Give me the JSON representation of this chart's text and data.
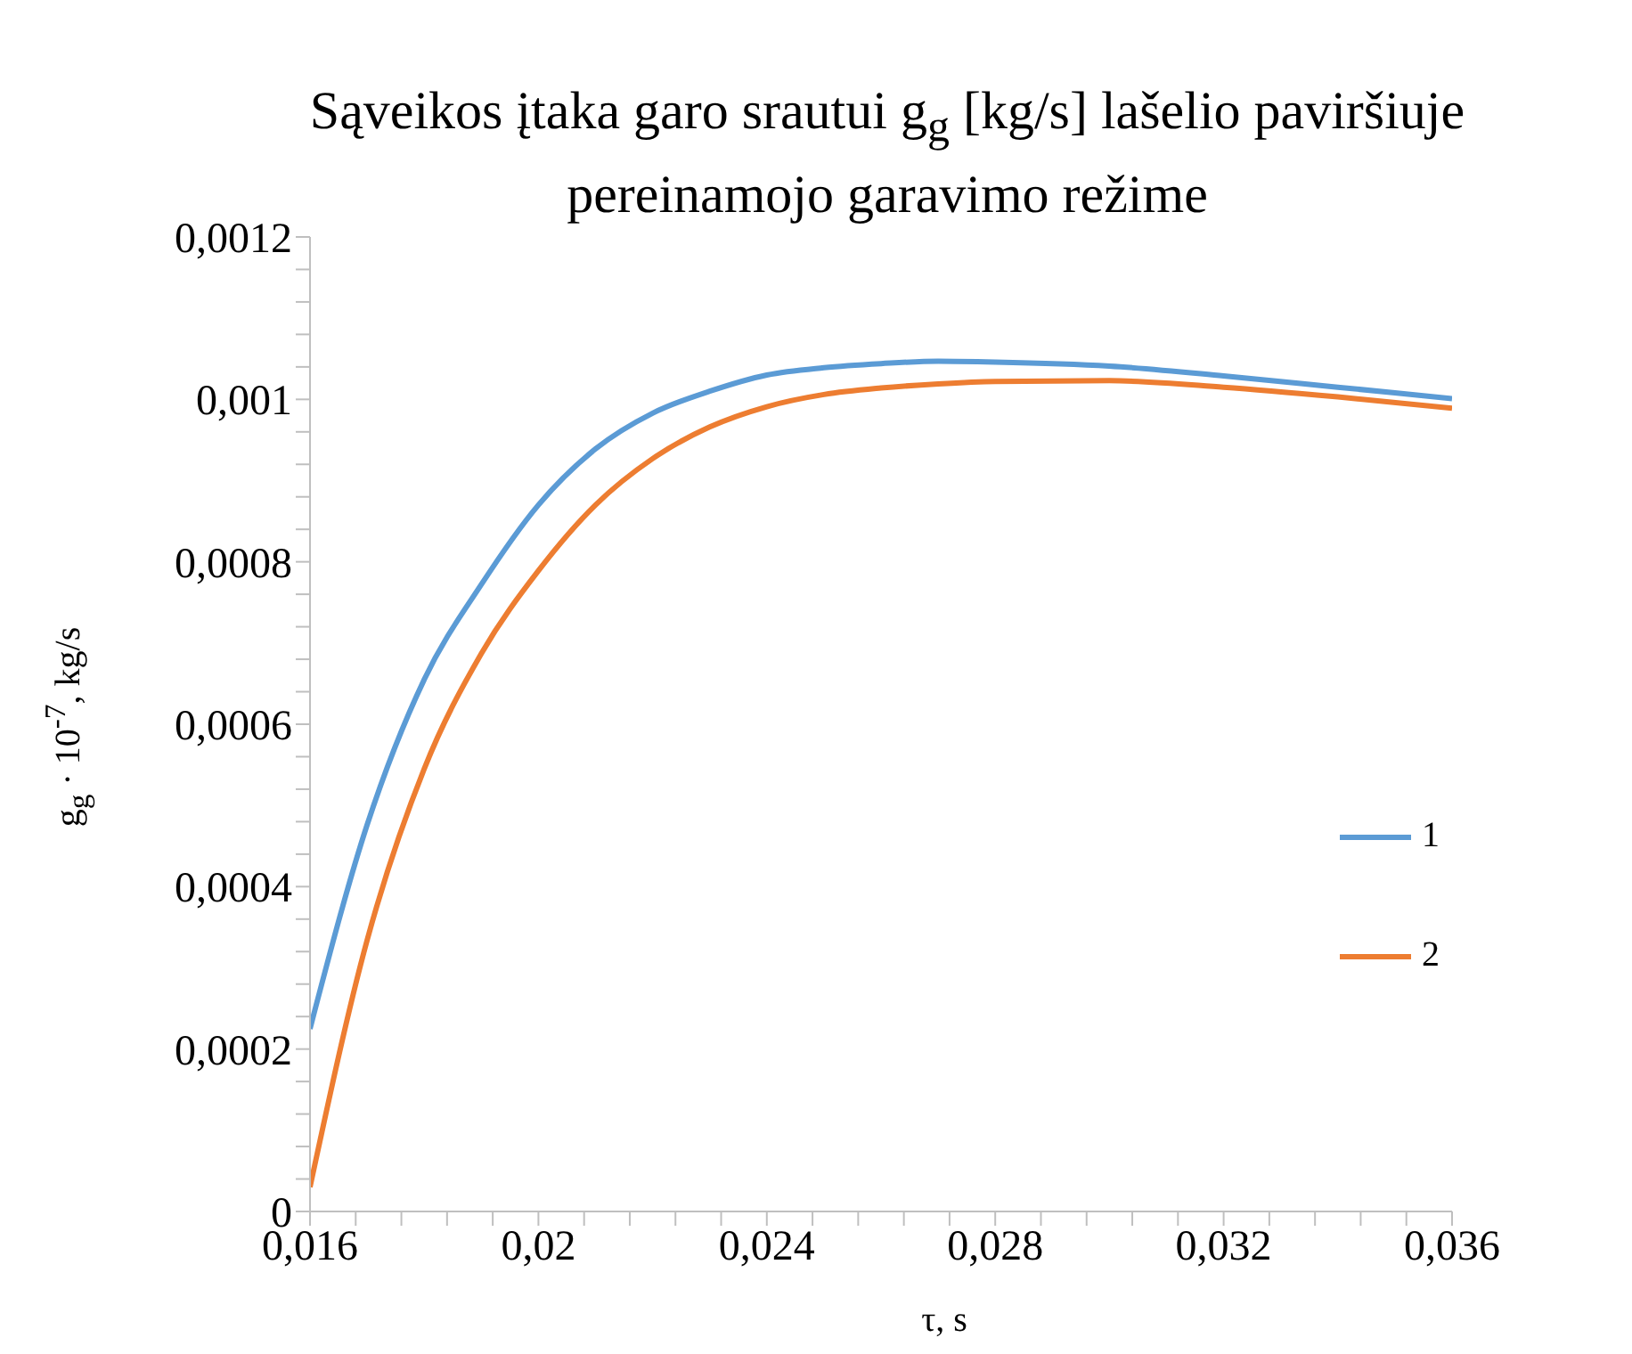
{
  "chart_data": {
    "type": "line",
    "title": "Sąveikos įtaka garo srautui g$_{g}$ [kg/s] lašelio paviršiuje pereinamojo garavimo režime",
    "xlabel": "τ, s",
    "ylabel": "g$_{g}$ · 10$^{-7}$, kg/s",
    "x": [
      0.016,
      0.017,
      0.018,
      0.019,
      0.02,
      0.021,
      0.022,
      0.023,
      0.024,
      0.025,
      0.026,
      0.027,
      0.028,
      0.03,
      0.032,
      0.034,
      0.036
    ],
    "series": [
      {
        "name": "1",
        "color": "#5b9bd5",
        "values": [
          0.000225,
          0.000476,
          0.000655,
          0.000772,
          0.00087,
          0.000939,
          0.000983,
          0.00101,
          0.00103,
          0.001039,
          0.001044,
          0.001047,
          0.001046,
          0.001041,
          0.001029,
          0.001015,
          0.001001
        ]
      },
      {
        "name": "2",
        "color": "#ed7d31",
        "values": [
          3e-05,
          0.000334,
          0.000545,
          0.000687,
          0.000789,
          0.00087,
          0.000927,
          0.000966,
          0.000991,
          0.001006,
          0.001014,
          0.001019,
          0.001022,
          0.001023,
          0.001015,
          0.001003,
          0.000989
        ]
      }
    ],
    "xlim": [
      0.016,
      0.036
    ],
    "xticks": [
      {
        "value": 0.016,
        "label": "0,016"
      },
      {
        "value": 0.0168,
        "label": null
      },
      {
        "value": 0.0176,
        "label": null
      },
      {
        "value": 0.0184,
        "label": null
      },
      {
        "value": 0.0192,
        "label": null
      },
      {
        "value": 0.02,
        "label": "0,02"
      },
      {
        "value": 0.0208,
        "label": null
      },
      {
        "value": 0.0216,
        "label": null
      },
      {
        "value": 0.0224,
        "label": null
      },
      {
        "value": 0.0232,
        "label": null
      },
      {
        "value": 0.024,
        "label": "0,024"
      },
      {
        "value": 0.0248,
        "label": null
      },
      {
        "value": 0.0256,
        "label": null
      },
      {
        "value": 0.0264,
        "label": null
      },
      {
        "value": 0.0272,
        "label": null
      },
      {
        "value": 0.028,
        "label": "0,028"
      },
      {
        "value": 0.0288,
        "label": null
      },
      {
        "value": 0.0296,
        "label": null
      },
      {
        "value": 0.0304,
        "label": null
      },
      {
        "value": 0.0312,
        "label": null
      },
      {
        "value": 0.032,
        "label": "0,032"
      },
      {
        "value": 0.0328,
        "label": null
      },
      {
        "value": 0.0336,
        "label": null
      },
      {
        "value": 0.0344,
        "label": null
      },
      {
        "value": 0.0352,
        "label": null
      },
      {
        "value": 0.036,
        "label": "0,036"
      }
    ],
    "ylim": [
      0,
      0.0012
    ],
    "yticks": [
      0,
      {
        "value": 4e-05,
        "label": null
      },
      {
        "value": 8e-05,
        "label": null
      },
      {
        "value": 0.00012,
        "label": null
      },
      {
        "value": 0.00016,
        "label": null
      },
      {
        "value": 0.0002,
        "label": "0,0002"
      },
      {
        "value": 0.00024,
        "label": null
      },
      {
        "value": 0.00028,
        "label": null
      },
      {
        "value": 0.00032,
        "label": null
      },
      {
        "value": 0.00036,
        "label": null
      },
      {
        "value": 0.0004,
        "label": "0,0004"
      },
      {
        "value": 0.00044,
        "label": null
      },
      {
        "value": 0.00048,
        "label": null
      },
      {
        "value": 0.00052,
        "label": null
      },
      {
        "value": 0.00056,
        "label": null
      },
      {
        "value": 0.0006,
        "label": "0,0006"
      },
      {
        "value": 0.00064,
        "label": null
      },
      {
        "value": 0.00068,
        "label": null
      },
      {
        "value": 0.00072,
        "label": null
      },
      {
        "value": 0.00076,
        "label": null
      },
      {
        "value": 0.0008,
        "label": "0,0008"
      },
      {
        "value": 0.00084,
        "label": null
      },
      {
        "value": 0.00088,
        "label": null
      },
      {
        "value": 0.00092,
        "label": null
      },
      {
        "value": 0.00096,
        "label": null
      },
      {
        "value": 0.001,
        "label": "0,001"
      },
      {
        "value": 0.00104,
        "label": null
      },
      {
        "value": 0.00108,
        "label": null
      },
      {
        "value": 0.00112,
        "label": null
      },
      {
        "value": 0.00116,
        "label": null
      },
      {
        "value": 0.0012,
        "label": "0,0012"
      }
    ],
    "grid": false,
    "legend": "right",
    "marker": "none",
    "line_style": "solid"
  }
}
